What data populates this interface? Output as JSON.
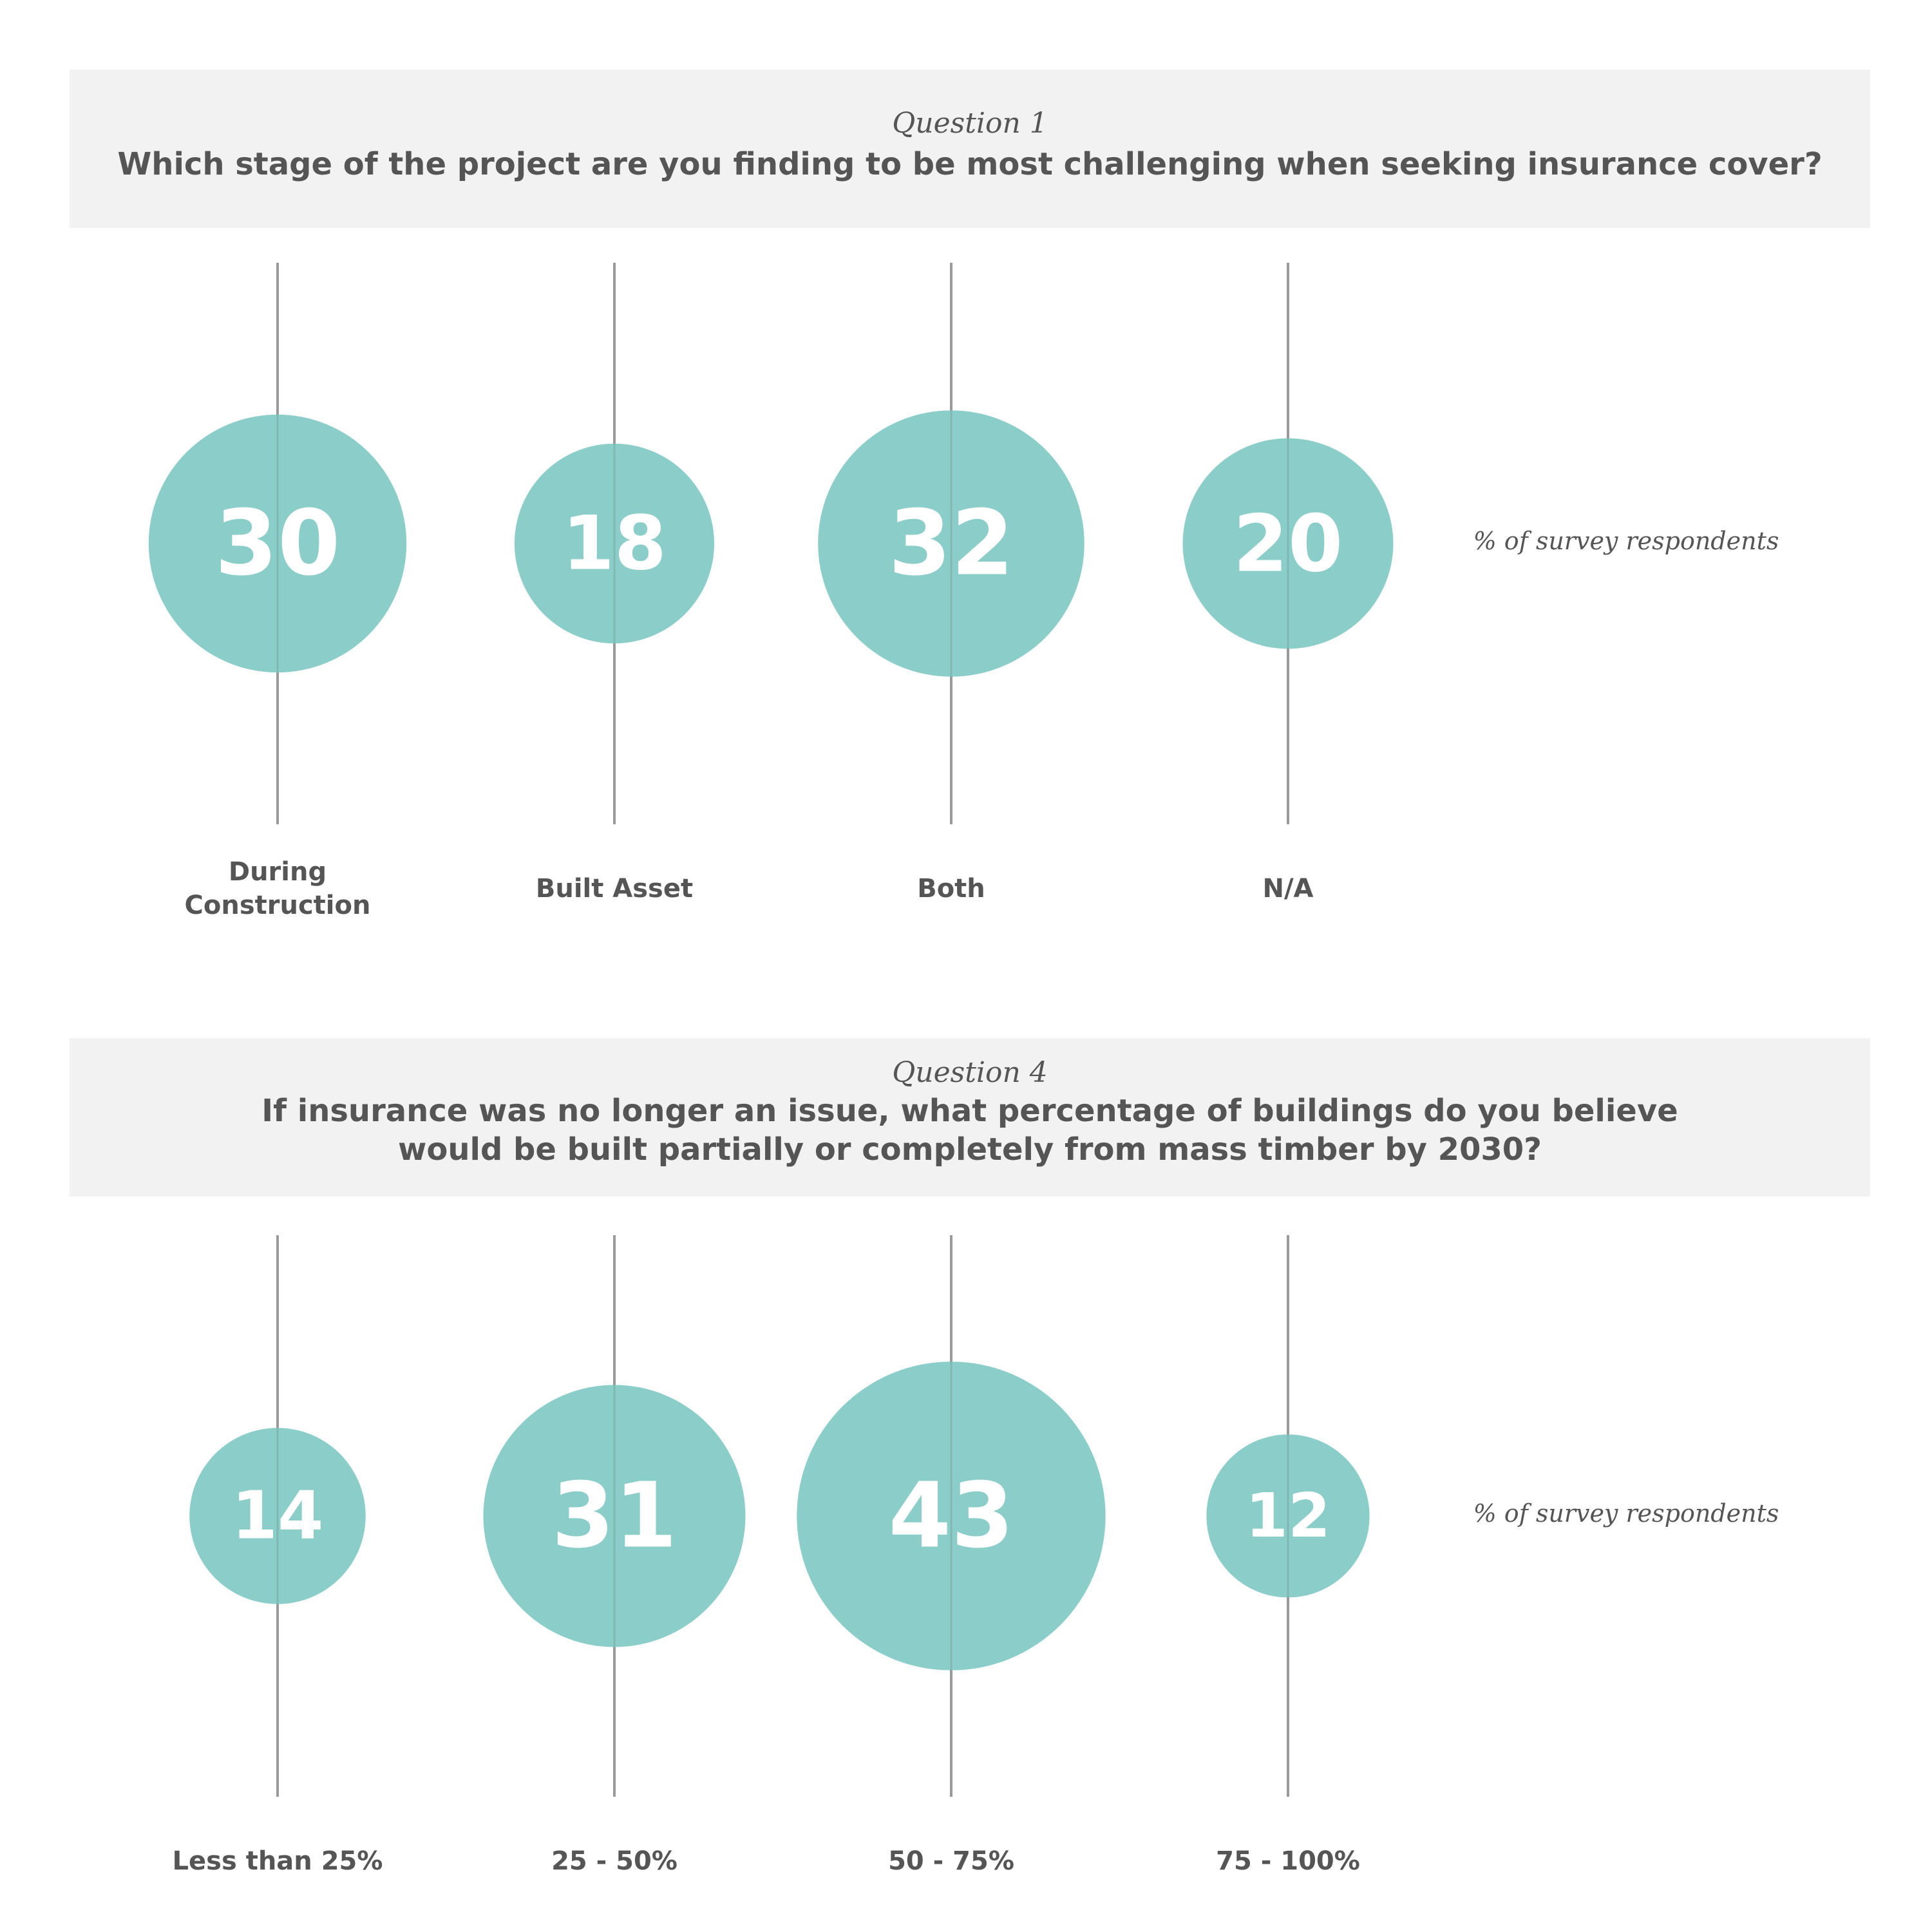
{
  "colors": {
    "bubble": "#8bcec9",
    "line": "#9a9a9a",
    "text": "#555555",
    "panel": "#f2f2f2"
  },
  "chart_data": [
    {
      "type": "bubble",
      "question_label": "Question 1",
      "question": "Which stage of the project are you finding to be most challenging when seeking insurance cover?",
      "categories": [
        "During\nConstruction",
        "Built Asset",
        "Both",
        "N/A"
      ],
      "values": [
        30,
        18,
        32,
        20
      ],
      "unit_note": "% of survey respondents"
    },
    {
      "type": "bubble",
      "question_label": "Question 4",
      "question": "If insurance was no longer an issue, what percentage of buildings do you believe would be built partially or completely from mass timber by 2030?",
      "categories": [
        "Less than 25%",
        "25 - 50%",
        "50 - 75%",
        "75 - 100%"
      ],
      "values": [
        14,
        31,
        43,
        12
      ],
      "unit_note": "% of survey respondents"
    }
  ]
}
